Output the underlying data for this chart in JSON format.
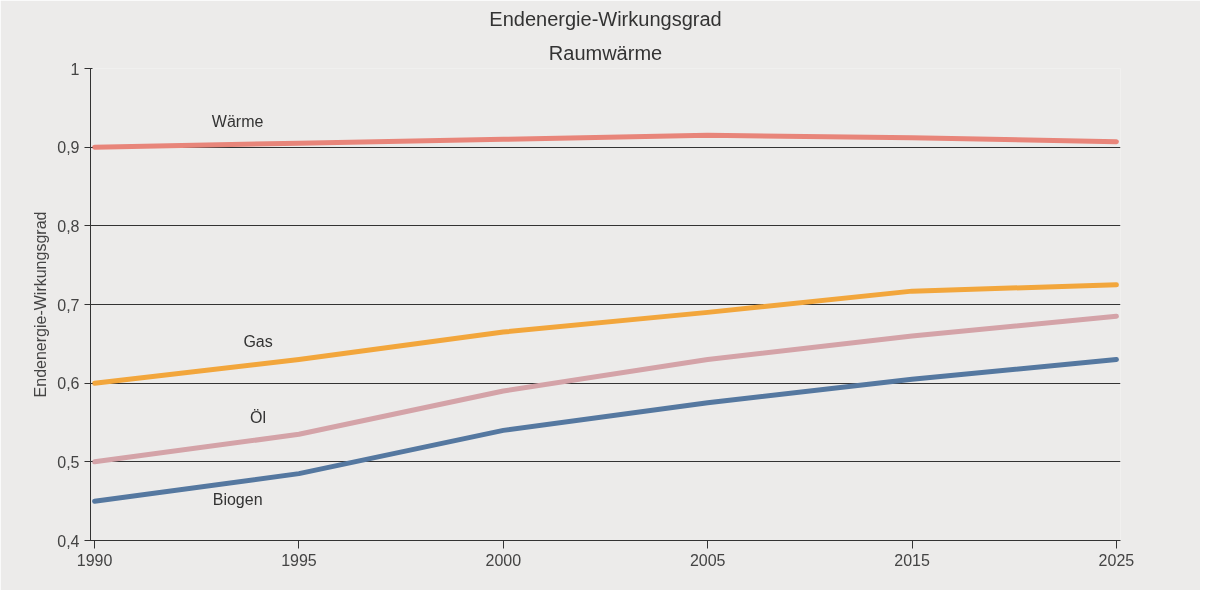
{
  "chart_data": {
    "type": "line",
    "title": "Endenergie-Wirkungsgrad",
    "subtitle": "Raumwärme",
    "ylabel": "Endenergie-Wirkungsgrad",
    "categories": [
      "1990",
      "1995",
      "2000",
      "2005",
      "2015",
      "2025"
    ],
    "series": [
      {
        "name": "Wärme",
        "color": "#e8857a",
        "values": [
          0.9,
          0.905,
          0.91,
          0.915,
          0.912,
          0.907
        ]
      },
      {
        "name": "Gas",
        "color": "#f2a63c",
        "values": [
          0.6,
          0.63,
          0.665,
          0.69,
          0.717,
          0.725
        ]
      },
      {
        "name": "Öl",
        "color": "#d4a3a8",
        "values": [
          0.5,
          0.535,
          0.59,
          0.63,
          0.66,
          0.685
        ]
      },
      {
        "name": "Biogen",
        "color": "#5578a0",
        "values": [
          0.45,
          0.485,
          0.54,
          0.575,
          0.605,
          0.63
        ]
      }
    ],
    "ylim": [
      0.4,
      1
    ],
    "yticks": [
      {
        "value": 0.4,
        "label": "0,4"
      },
      {
        "value": 0.5,
        "label": "0,5"
      },
      {
        "value": 0.6,
        "label": "0,6"
      },
      {
        "value": 0.7,
        "label": "0,7"
      },
      {
        "value": 0.8,
        "label": "0,8"
      },
      {
        "value": 0.9,
        "label": "0,9"
      },
      1
    ],
    "grid": "y",
    "legend": false,
    "marker": "none",
    "line_style": "solid"
  }
}
